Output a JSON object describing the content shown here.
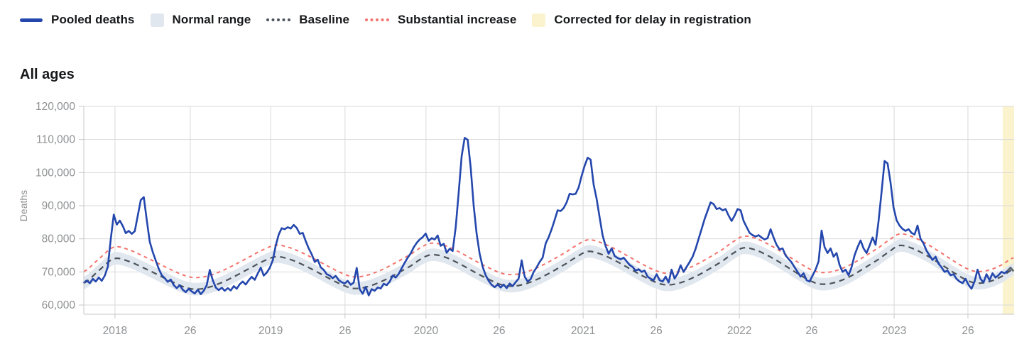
{
  "title": "All ages",
  "legend": {
    "items": [
      {
        "label": "Pooled deaths",
        "swatch": "line",
        "color": "#2447ad"
      },
      {
        "label": "Normal range",
        "swatch": "box",
        "color": "#e1e7ee"
      },
      {
        "label": "Baseline",
        "swatch": "dotted",
        "color": "#4d535b"
      },
      {
        "label": "Substantial increase",
        "swatch": "dotted",
        "color": "#f3736c"
      },
      {
        "label": "Corrected for delay in registration",
        "swatch": "box",
        "color": "#faf3cd"
      }
    ]
  },
  "chart_data": {
    "type": "line",
    "title": "All ages",
    "ylabel": "Deaths",
    "xlabel": "",
    "x_unit": "ISO week index; t=0 is approx 2017-W42, one unit = one week",
    "xlim": [
      0,
      310.2
    ],
    "ylim": [
      57000,
      120000
    ],
    "grid": true,
    "legend_position": "top",
    "colors": {
      "grid": "#d9d9d9",
      "spine": "#c7c7c7",
      "tick_text": "#8f9193",
      "corrected_tip": "#5a646e"
    },
    "yticks": [
      {
        "value": 60000,
        "label": "60,000"
      },
      {
        "value": 70000,
        "label": "70,000"
      },
      {
        "value": 80000,
        "label": "80,000"
      },
      {
        "value": 90000,
        "label": "90,000"
      },
      {
        "value": 100000,
        "label": "100,000"
      },
      {
        "value": 110000,
        "label": "110,000"
      },
      {
        "value": 120000,
        "label": "120,000"
      }
    ],
    "xticks": [
      {
        "t": 10.4,
        "label": "2018"
      },
      {
        "t": 35.5,
        "label": "26"
      },
      {
        "t": 62.3,
        "label": "2019"
      },
      {
        "t": 87.1,
        "label": "26"
      },
      {
        "t": 114.1,
        "label": "2020"
      },
      {
        "t": 138.5,
        "label": "26"
      },
      {
        "t": 166.5,
        "label": "2021"
      },
      {
        "t": 190.9,
        "label": "26"
      },
      {
        "t": 218.6,
        "label": "2022"
      },
      {
        "t": 242.7,
        "label": "26"
      },
      {
        "t": 270.2,
        "label": "2023"
      },
      {
        "t": 294.8,
        "label": "26"
      }
    ],
    "series": [
      {
        "name": "Pooled deaths",
        "type": "line",
        "color": "#2447ad",
        "width": 2.6,
        "t_start": 0,
        "t_step": 1,
        "values": [
          66800,
          67400,
          66600,
          67900,
          67100,
          68300,
          67300,
          68900,
          71500,
          80000,
          87300,
          84300,
          85500,
          83900,
          81700,
          82400,
          81500,
          82300,
          87000,
          91700,
          92600,
          85600,
          79100,
          76000,
          73400,
          70900,
          69000,
          68100,
          67000,
          67700,
          66000,
          65100,
          66000,
          64600,
          63900,
          64900,
          64100,
          63500,
          64600,
          63300,
          64300,
          66000,
          70600,
          67500,
          65300,
          64500,
          65200,
          64300,
          65100,
          64400,
          65700,
          64900,
          66300,
          67100,
          66200,
          67500,
          68500,
          67600,
          69500,
          71300,
          68900,
          69800,
          71200,
          73500,
          78000,
          81300,
          83200,
          82900,
          83500,
          83100,
          84200,
          83300,
          81500,
          81800,
          79300,
          77100,
          75300,
          73000,
          73700,
          71400,
          70600,
          69300,
          68900,
          68100,
          68800,
          67500,
          66900,
          66500,
          67300,
          66100,
          66800,
          71200,
          64800,
          63400,
          65500,
          62900,
          64800,
          64300,
          65300,
          65000,
          66400,
          66000,
          67100,
          68900,
          68300,
          69400,
          71100,
          72800,
          74300,
          75600,
          77400,
          78800,
          79800,
          80500,
          81600,
          79400,
          80200,
          79800,
          81000,
          77900,
          78500,
          75800,
          77000,
          76300,
          83500,
          94000,
          105000,
          110500,
          109900,
          101500,
          90000,
          81500,
          75500,
          71500,
          69000,
          67300,
          66100,
          65400,
          66200,
          65300,
          66200,
          65100,
          66500,
          65700,
          66900,
          68000,
          73500,
          68600,
          67100,
          67800,
          70000,
          71400,
          73000,
          74300,
          78600,
          80500,
          82900,
          85700,
          88600,
          88400,
          89300,
          91000,
          93600,
          93400,
          93600,
          95500,
          99000,
          102100,
          104500,
          103900,
          96400,
          92100,
          86400,
          81000,
          77800,
          75500,
          77100,
          74800,
          74200,
          73800,
          74300,
          73200,
          72100,
          71500,
          70400,
          70800,
          70000,
          70400,
          68600,
          67900,
          67500,
          69300,
          67500,
          67100,
          68600,
          66800,
          70700,
          68000,
          69500,
          72000,
          70000,
          71500,
          73000,
          74600,
          77000,
          80000,
          83000,
          86000,
          88500,
          91000,
          90500,
          89000,
          89300,
          88600,
          89000,
          87000,
          85400,
          87000,
          89000,
          88600,
          85400,
          83600,
          81800,
          81100,
          80700,
          81100,
          80400,
          79800,
          80200,
          82900,
          80400,
          78200,
          76800,
          77100,
          75000,
          73900,
          72900,
          71400,
          70000,
          68600,
          69600,
          67500,
          67100,
          68900,
          70700,
          73200,
          82500,
          77500,
          75700,
          77100,
          74600,
          75700,
          72100,
          70000,
          70700,
          69000,
          71400,
          75000,
          77500,
          79500,
          77100,
          75700,
          77900,
          80400,
          78200,
          85300,
          94000,
          103500,
          102800,
          97000,
          89500,
          85600,
          84000,
          83000,
          82400,
          82900,
          81800,
          81300,
          84000,
          80000,
          78600,
          76400,
          75000,
          73600,
          74600,
          72500,
          71400,
          70000,
          70400,
          69000,
          69300,
          67900,
          67100,
          66600,
          67900,
          66100,
          64900,
          67100,
          70700,
          67900,
          66800,
          69300,
          67500,
          69600,
          68300,
          69000,
          70000,
          69600,
          70300,
          71300,
          70200
        ]
      },
      {
        "name": "Baseline",
        "type": "line",
        "style": "dashed",
        "color": "#4d535b",
        "width": 2.2,
        "points": [
          [
            0,
            66600
          ],
          [
            5,
            70400
          ],
          [
            10,
            74000
          ],
          [
            15,
            73200
          ],
          [
            20,
            71200
          ],
          [
            25,
            69000
          ],
          [
            30,
            66800
          ],
          [
            34,
            65300
          ],
          [
            37,
            64800
          ],
          [
            41,
            65200
          ],
          [
            46,
            66800
          ],
          [
            51,
            69000
          ],
          [
            56,
            71400
          ],
          [
            60,
            73300
          ],
          [
            64,
            74600
          ],
          [
            68,
            74000
          ],
          [
            73,
            72200
          ],
          [
            78,
            69900
          ],
          [
            83,
            67500
          ],
          [
            87,
            65800
          ],
          [
            90,
            65000
          ],
          [
            94,
            65400
          ],
          [
            99,
            67000
          ],
          [
            104,
            69300
          ],
          [
            109,
            71800
          ],
          [
            113,
            74200
          ],
          [
            116,
            75200
          ],
          [
            120,
            74600
          ],
          [
            125,
            72600
          ],
          [
            130,
            70100
          ],
          [
            135,
            67800
          ],
          [
            139,
            66200
          ],
          [
            142,
            65700
          ],
          [
            146,
            66100
          ],
          [
            151,
            67700
          ],
          [
            156,
            70000
          ],
          [
            161,
            72600
          ],
          [
            165,
            74900
          ],
          [
            168,
            76200
          ],
          [
            172,
            75500
          ],
          [
            177,
            73500
          ],
          [
            182,
            71000
          ],
          [
            187,
            68500
          ],
          [
            191,
            66800
          ],
          [
            194,
            66100
          ],
          [
            198,
            66500
          ],
          [
            203,
            68200
          ],
          [
            208,
            70600
          ],
          [
            213,
            73300
          ],
          [
            217,
            75900
          ],
          [
            220,
            77300
          ],
          [
            224,
            76600
          ],
          [
            229,
            74500
          ],
          [
            234,
            71800
          ],
          [
            239,
            69000
          ],
          [
            243,
            67000
          ],
          [
            246,
            66300
          ],
          [
            250,
            66700
          ],
          [
            255,
            68400
          ],
          [
            260,
            71000
          ],
          [
            265,
            73800
          ],
          [
            269,
            76400
          ],
          [
            272,
            78000
          ],
          [
            276,
            77200
          ],
          [
            281,
            75000
          ],
          [
            286,
            72200
          ],
          [
            291,
            69300
          ],
          [
            295,
            67300
          ],
          [
            298,
            66600
          ],
          [
            302,
            67100
          ],
          [
            306,
            68600
          ],
          [
            310,
            70800
          ]
        ]
      },
      {
        "name": "Substantial increase",
        "type": "line",
        "style": "dashed",
        "color": "#f3736c",
        "width": 2.0,
        "derived_from": "Baseline",
        "offset": 3500
      },
      {
        "name": "Normal range",
        "type": "band",
        "color": "#e1e7ee",
        "around": "Baseline",
        "halfwidth": 1900
      },
      {
        "name": "Corrected for delay in registration",
        "type": "vspan",
        "color": "#faf3cd",
        "t_range": [
          306.4,
          310.2
        ]
      }
    ],
    "corrected_tip": {
      "color": "#5a646e",
      "t_start": 308,
      "t_step": 1,
      "values": [
        70300,
        71300,
        70200
      ]
    }
  }
}
